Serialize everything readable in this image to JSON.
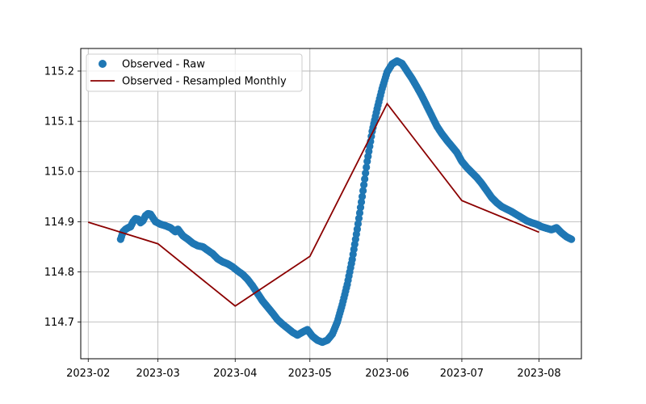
{
  "chart_data": {
    "type": "scatter",
    "title": "",
    "xlabel": "",
    "ylabel": "",
    "xlim": [
      "2023-01-29",
      "2023-08-18"
    ],
    "ylim": [
      114.627,
      115.245
    ],
    "grid": true,
    "legend_position": "top-left",
    "x_ticks": [
      "2023-02",
      "2023-03",
      "2023-04",
      "2023-05",
      "2023-06",
      "2023-07",
      "2023-08"
    ],
    "y_ticks": [
      "114.7",
      "114.8",
      "114.9",
      "115.0",
      "115.1",
      "115.2"
    ],
    "series": [
      {
        "name": "Observed - Raw",
        "kind": "scatter",
        "color": "#1f77b4",
        "points": [
          [
            "2023-02-14",
            114.865
          ],
          [
            "2023-02-15",
            114.88
          ],
          [
            "2023-02-16",
            114.885
          ],
          [
            "2023-02-17",
            114.888
          ],
          [
            "2023-02-18",
            114.89
          ],
          [
            "2023-02-19",
            114.9
          ],
          [
            "2023-02-20",
            114.906
          ],
          [
            "2023-02-21",
            114.905
          ],
          [
            "2023-02-22",
            114.898
          ],
          [
            "2023-02-23",
            114.902
          ],
          [
            "2023-02-24",
            114.912
          ],
          [
            "2023-02-25",
            114.916
          ],
          [
            "2023-02-26",
            114.915
          ],
          [
            "2023-02-28",
            114.9
          ],
          [
            "2023-03-02",
            114.895
          ],
          [
            "2023-03-04",
            114.892
          ],
          [
            "2023-03-06",
            114.888
          ],
          [
            "2023-03-08",
            114.88
          ],
          [
            "2023-03-09",
            114.885
          ],
          [
            "2023-03-11",
            114.872
          ],
          [
            "2023-03-13",
            114.865
          ],
          [
            "2023-03-15",
            114.857
          ],
          [
            "2023-03-17",
            114.852
          ],
          [
            "2023-03-19",
            114.85
          ],
          [
            "2023-03-21",
            114.843
          ],
          [
            "2023-03-23",
            114.836
          ],
          [
            "2023-03-25",
            114.826
          ],
          [
            "2023-03-27",
            114.82
          ],
          [
            "2023-03-29",
            114.816
          ],
          [
            "2023-03-31",
            114.81
          ],
          [
            "2023-04-02",
            114.802
          ],
          [
            "2023-04-04",
            114.795
          ],
          [
            "2023-04-06",
            114.785
          ],
          [
            "2023-04-08",
            114.772
          ],
          [
            "2023-04-10",
            114.757
          ],
          [
            "2023-04-12",
            114.742
          ],
          [
            "2023-04-14",
            114.73
          ],
          [
            "2023-04-16",
            114.718
          ],
          [
            "2023-04-18",
            114.705
          ],
          [
            "2023-04-20",
            114.696
          ],
          [
            "2023-04-22",
            114.688
          ],
          [
            "2023-04-24",
            114.68
          ],
          [
            "2023-04-26",
            114.674
          ],
          [
            "2023-04-28",
            114.68
          ],
          [
            "2023-04-30",
            114.685
          ],
          [
            "2023-05-02",
            114.672
          ],
          [
            "2023-05-04",
            114.664
          ],
          [
            "2023-05-06",
            114.66
          ],
          [
            "2023-05-08",
            114.664
          ],
          [
            "2023-05-10",
            114.676
          ],
          [
            "2023-05-12",
            114.7
          ],
          [
            "2023-05-14",
            114.735
          ],
          [
            "2023-05-16",
            114.775
          ],
          [
            "2023-05-18",
            114.825
          ],
          [
            "2023-05-20",
            114.885
          ],
          [
            "2023-05-22",
            114.95
          ],
          [
            "2023-05-24",
            115.02
          ],
          [
            "2023-05-26",
            115.08
          ],
          [
            "2023-05-28",
            115.125
          ],
          [
            "2023-05-30",
            115.165
          ],
          [
            "2023-06-01",
            115.198
          ],
          [
            "2023-06-03",
            115.214
          ],
          [
            "2023-06-05",
            115.22
          ],
          [
            "2023-06-07",
            115.215
          ],
          [
            "2023-06-09",
            115.2
          ],
          [
            "2023-06-11",
            115.185
          ],
          [
            "2023-06-13",
            115.168
          ],
          [
            "2023-06-15",
            115.15
          ],
          [
            "2023-06-17",
            115.13
          ],
          [
            "2023-06-19",
            115.11
          ],
          [
            "2023-06-21",
            115.09
          ],
          [
            "2023-06-23",
            115.075
          ],
          [
            "2023-06-25",
            115.062
          ],
          [
            "2023-06-27",
            115.05
          ],
          [
            "2023-06-29",
            115.038
          ],
          [
            "2023-07-01",
            115.02
          ],
          [
            "2023-07-03",
            115.008
          ],
          [
            "2023-07-05",
            114.998
          ],
          [
            "2023-07-07",
            114.988
          ],
          [
            "2023-07-09",
            114.976
          ],
          [
            "2023-07-11",
            114.962
          ],
          [
            "2023-07-13",
            114.948
          ],
          [
            "2023-07-15",
            114.938
          ],
          [
            "2023-07-17",
            114.93
          ],
          [
            "2023-07-19",
            114.925
          ],
          [
            "2023-07-21",
            114.92
          ],
          [
            "2023-07-23",
            114.914
          ],
          [
            "2023-07-25",
            114.908
          ],
          [
            "2023-07-27",
            114.902
          ],
          [
            "2023-07-29",
            114.898
          ],
          [
            "2023-07-31",
            114.895
          ],
          [
            "2023-08-02",
            114.89
          ],
          [
            "2023-08-04",
            114.887
          ],
          [
            "2023-08-06",
            114.884
          ],
          [
            "2023-08-08",
            114.888
          ],
          [
            "2023-08-10",
            114.878
          ],
          [
            "2023-08-12",
            114.87
          ],
          [
            "2023-08-14",
            114.865
          ]
        ]
      },
      {
        "name": "Observed - Resampled Monthly",
        "kind": "line",
        "color": "#8b0000",
        "points": [
          [
            "2023-02-01",
            114.899
          ],
          [
            "2023-03-01",
            114.856
          ],
          [
            "2023-04-01",
            114.732
          ],
          [
            "2023-05-01",
            114.831
          ],
          [
            "2023-06-01",
            115.135
          ],
          [
            "2023-07-01",
            114.942
          ],
          [
            "2023-08-01",
            114.879
          ]
        ]
      }
    ]
  }
}
